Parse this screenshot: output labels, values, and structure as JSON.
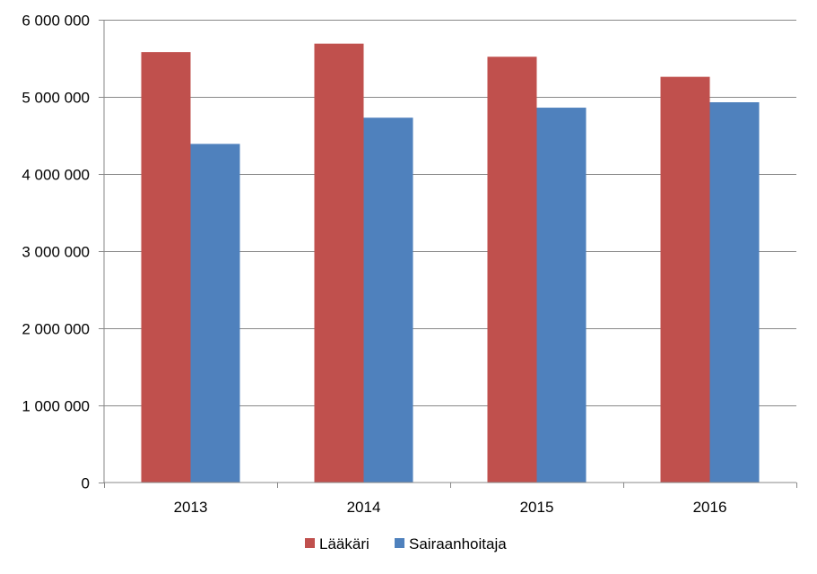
{
  "chart_data": {
    "type": "bar",
    "title": "",
    "xlabel": "",
    "ylabel": "",
    "categories": [
      "2013",
      "2014",
      "2015",
      "2016"
    ],
    "series": [
      {
        "name": "Lääkäri",
        "color": "#C0504D",
        "values": [
          5580000,
          5690000,
          5520000,
          5260000
        ]
      },
      {
        "name": "Sairaanhoitaja",
        "color": "#4F81BD",
        "values": [
          4390000,
          4730000,
          4860000,
          4930000
        ]
      }
    ],
    "ylim": [
      0,
      6000000
    ],
    "yticks": [
      0,
      1000000,
      2000000,
      3000000,
      4000000,
      5000000,
      6000000
    ],
    "ytick_labels": [
      "0",
      "1 000 000",
      "2 000 000",
      "3 000 000",
      "4 000 000",
      "5 000 000",
      "6 000 000"
    ],
    "grid": true,
    "legend_position": "bottom"
  }
}
